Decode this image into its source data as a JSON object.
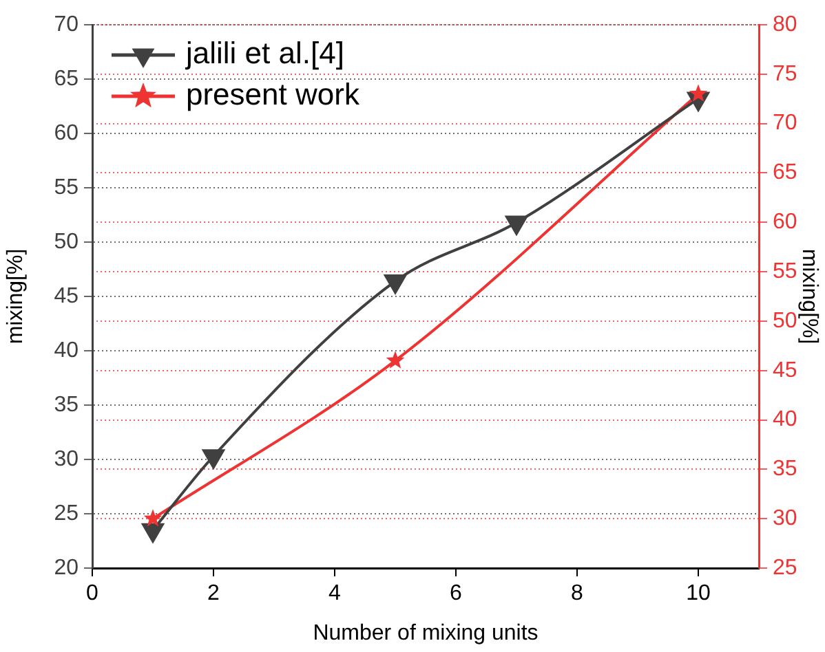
{
  "chart_data": {
    "type": "line",
    "xlabel": "Number of mixing units",
    "ylabel": "mixing[%]",
    "y2label": "mixing[%]",
    "series": [
      {
        "name": "jalili et al.[4]",
        "color": "#404040",
        "x": [
          1,
          2,
          5,
          7,
          10
        ],
        "values": [
          23.5,
          30.3,
          46.4,
          51.8,
          63.2
        ],
        "marker": "triangle"
      },
      {
        "name": "present work",
        "color": "#ee3333",
        "x": [
          1,
          5,
          10
        ],
        "values": [
          30,
          46,
          73
        ],
        "marker": "star",
        "axis": "y2"
      }
    ],
    "xlim": [
      0,
      11
    ],
    "xticks": [
      0,
      2,
      4,
      6,
      8,
      10
    ],
    "ylim": [
      20,
      70
    ],
    "yticks": [
      20,
      25,
      30,
      35,
      40,
      45,
      50,
      55,
      60,
      65,
      70
    ],
    "y2lim": [
      25,
      80
    ],
    "y2ticks": [
      25,
      30,
      35,
      40,
      45,
      50,
      55,
      60,
      65,
      70,
      75,
      80
    ],
    "grid": "y",
    "legend": "top left",
    "line_style": "solid"
  }
}
